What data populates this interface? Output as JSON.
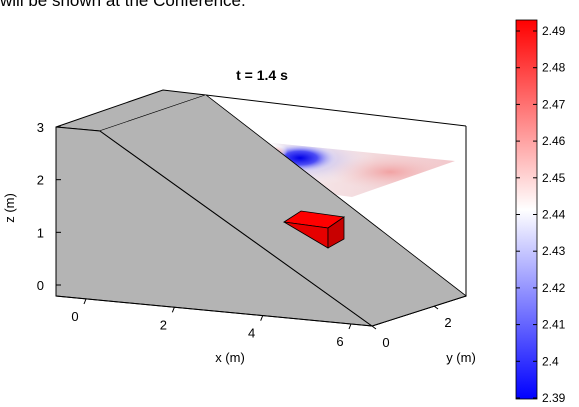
{
  "caption": "will be shown at the Conference.",
  "chart_data": {
    "type": "heatmap",
    "title": "t = 1.4 s",
    "xlabel": "x (m)",
    "ylabel": "y (m)",
    "zlabel": "z (m)",
    "x_ticks": [
      "0",
      "2",
      "4",
      "6"
    ],
    "y_ticks": [
      "0",
      "2"
    ],
    "z_ticks": [
      "0",
      "1",
      "2",
      "3"
    ],
    "z_range": [
      0,
      3
    ],
    "grid": false,
    "colorbar": {
      "ticks": [
        "2.49",
        "2.48",
        "2.47",
        "2.46",
        "2.45",
        "2.44",
        "2.43",
        "2.42",
        "2.41",
        "2.4",
        "2.39"
      ],
      "range": [
        2.39,
        2.49
      ],
      "colors": {
        "low": "#0000ff",
        "mid": "#ffffff",
        "high": "#ff0000"
      }
    },
    "colors": {
      "slope": "#b4b4b4",
      "block": "#ff0000",
      "outline": "#000000"
    }
  }
}
